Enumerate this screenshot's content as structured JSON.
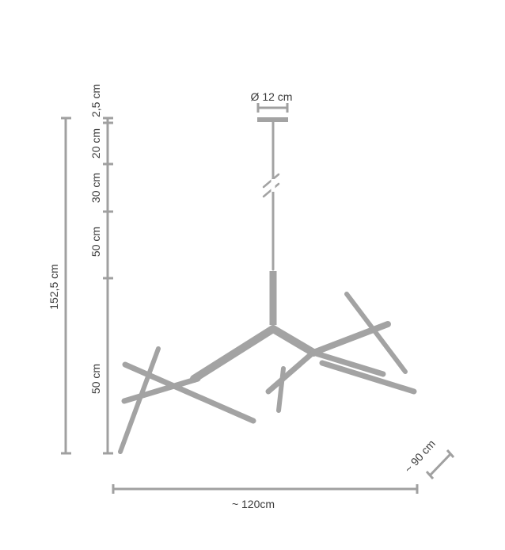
{
  "colors": {
    "lamp": "#a3a3a3",
    "dimension_line": "#a0a0a0",
    "text": "#3a3a3a"
  },
  "dimensions": {
    "canopy_diameter": "Ø 12 cm",
    "total_height": "152,5 cm",
    "segments": [
      "2,5 cm",
      "20 cm",
      "30 cm",
      "50 cm",
      "50 cm"
    ],
    "width": "~ 120cm",
    "depth": "~ 90 cm"
  }
}
